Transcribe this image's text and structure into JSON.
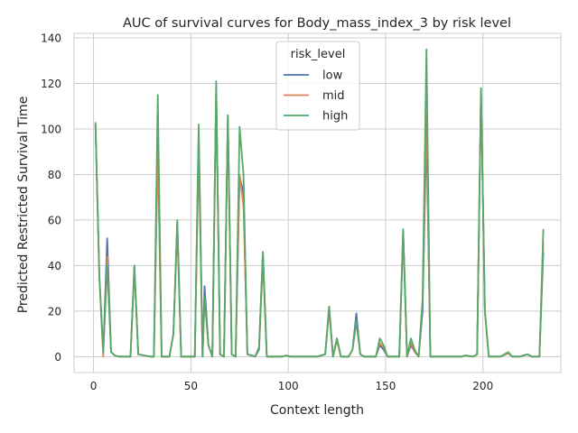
{
  "chart_data": {
    "type": "line",
    "title": "AUC of survival curves for Body_mass_index_3 by risk level",
    "xlabel": "Context length",
    "ylabel": "Predicted Restricted Survival Time",
    "xlim": [
      -10,
      240
    ],
    "ylim": [
      -7,
      142
    ],
    "x_ticks": [
      0,
      50,
      100,
      150,
      200
    ],
    "y_ticks": [
      0,
      20,
      40,
      60,
      80,
      100,
      120,
      140
    ],
    "grid": true,
    "legend": {
      "title": "risk_level",
      "position": "top-center"
    },
    "series": [
      {
        "name": "low",
        "color": "#4c72b0",
        "points": [
          [
            1,
            102
          ],
          [
            3,
            35
          ],
          [
            5,
            2
          ],
          [
            7,
            52
          ],
          [
            9,
            2
          ],
          [
            11,
            0.5
          ],
          [
            13,
            0
          ],
          [
            19,
            0
          ],
          [
            21,
            40
          ],
          [
            23,
            1
          ],
          [
            29,
            0
          ],
          [
            31,
            0
          ],
          [
            33,
            95
          ],
          [
            35,
            0
          ],
          [
            39,
            0
          ],
          [
            41,
            10
          ],
          [
            43,
            59
          ],
          [
            45,
            0
          ],
          [
            50,
            0
          ],
          [
            52,
            0
          ],
          [
            54,
            98
          ],
          [
            56,
            0
          ],
          [
            57,
            31
          ],
          [
            59,
            5
          ],
          [
            61,
            0
          ],
          [
            63,
            117
          ],
          [
            65,
            1
          ],
          [
            67,
            0
          ],
          [
            69,
            106
          ],
          [
            71,
            1
          ],
          [
            73,
            0
          ],
          [
            75,
            79
          ],
          [
            77,
            72
          ],
          [
            79,
            1
          ],
          [
            83,
            0
          ],
          [
            85,
            4
          ],
          [
            87,
            46
          ],
          [
            89,
            0
          ],
          [
            95,
            0
          ],
          [
            97,
            0
          ],
          [
            99,
            0.5
          ],
          [
            101,
            0
          ],
          [
            115,
            0
          ],
          [
            119,
            1
          ],
          [
            121,
            22
          ],
          [
            123,
            0
          ],
          [
            125,
            8
          ],
          [
            127,
            0
          ],
          [
            131,
            0
          ],
          [
            133,
            3
          ],
          [
            135,
            19
          ],
          [
            137,
            1
          ],
          [
            139,
            0
          ],
          [
            145,
            0
          ],
          [
            147,
            5
          ],
          [
            149,
            3
          ],
          [
            151,
            0
          ],
          [
            157,
            0
          ],
          [
            159,
            55
          ],
          [
            161,
            0
          ],
          [
            163,
            5
          ],
          [
            165,
            2
          ],
          [
            167,
            0
          ],
          [
            169,
            20
          ],
          [
            171,
            100
          ],
          [
            173,
            0
          ],
          [
            177,
            0
          ],
          [
            189,
            0
          ],
          [
            191,
            0.5
          ],
          [
            195,
            0
          ],
          [
            197,
            1
          ],
          [
            199,
            117
          ],
          [
            201,
            20
          ],
          [
            203,
            0
          ],
          [
            209,
            0
          ],
          [
            213,
            1.5
          ],
          [
            215,
            0
          ],
          [
            219,
            0
          ],
          [
            223,
            1
          ],
          [
            225,
            0
          ],
          [
            229,
            0
          ],
          [
            231,
            46
          ]
        ]
      },
      {
        "name": "mid",
        "color": "#dd8452",
        "points": [
          [
            1,
            102
          ],
          [
            3,
            35
          ],
          [
            5,
            0
          ],
          [
            7,
            44
          ],
          [
            9,
            2
          ],
          [
            11,
            0.5
          ],
          [
            13,
            0
          ],
          [
            19,
            0
          ],
          [
            21,
            38
          ],
          [
            23,
            1
          ],
          [
            29,
            0
          ],
          [
            31,
            0
          ],
          [
            33,
            90
          ],
          [
            35,
            0
          ],
          [
            39,
            0
          ],
          [
            41,
            10
          ],
          [
            43,
            56
          ],
          [
            45,
            0
          ],
          [
            50,
            0
          ],
          [
            52,
            0
          ],
          [
            54,
            90
          ],
          [
            56,
            0
          ],
          [
            57,
            26
          ],
          [
            59,
            5
          ],
          [
            61,
            0
          ],
          [
            63,
            115
          ],
          [
            65,
            1
          ],
          [
            67,
            0
          ],
          [
            69,
            104
          ],
          [
            71,
            1
          ],
          [
            73,
            0
          ],
          [
            75,
            80
          ],
          [
            77,
            66
          ],
          [
            79,
            1
          ],
          [
            83,
            0
          ],
          [
            85,
            3
          ],
          [
            87,
            42
          ],
          [
            89,
            0
          ],
          [
            95,
            0
          ],
          [
            97,
            0
          ],
          [
            99,
            0.5
          ],
          [
            101,
            0
          ],
          [
            115,
            0
          ],
          [
            119,
            1
          ],
          [
            121,
            20
          ],
          [
            123,
            0
          ],
          [
            125,
            7
          ],
          [
            127,
            0
          ],
          [
            131,
            0
          ],
          [
            133,
            3
          ],
          [
            135,
            15
          ],
          [
            137,
            1
          ],
          [
            139,
            0
          ],
          [
            145,
            0
          ],
          [
            147,
            6
          ],
          [
            149,
            4
          ],
          [
            151,
            0
          ],
          [
            157,
            0
          ],
          [
            159,
            55
          ],
          [
            161,
            0
          ],
          [
            163,
            6
          ],
          [
            165,
            2
          ],
          [
            167,
            0
          ],
          [
            169,
            25
          ],
          [
            171,
            107
          ],
          [
            173,
            0
          ],
          [
            177,
            0
          ],
          [
            189,
            0
          ],
          [
            191,
            0.5
          ],
          [
            195,
            0
          ],
          [
            197,
            1
          ],
          [
            199,
            116
          ],
          [
            201,
            20
          ],
          [
            203,
            0
          ],
          [
            209,
            0
          ],
          [
            213,
            1.5
          ],
          [
            215,
            0
          ],
          [
            219,
            0
          ],
          [
            223,
            1
          ],
          [
            225,
            0
          ],
          [
            229,
            0
          ],
          [
            231,
            50
          ]
        ]
      },
      {
        "name": "high",
        "color": "#55a868",
        "points": [
          [
            1,
            103
          ],
          [
            3,
            36
          ],
          [
            5,
            2
          ],
          [
            7,
            40
          ],
          [
            9,
            2
          ],
          [
            11,
            0.5
          ],
          [
            13,
            0
          ],
          [
            19,
            0
          ],
          [
            21,
            40
          ],
          [
            23,
            1
          ],
          [
            29,
            0
          ],
          [
            31,
            0
          ],
          [
            33,
            115
          ],
          [
            35,
            0
          ],
          [
            39,
            0
          ],
          [
            41,
            10
          ],
          [
            43,
            60
          ],
          [
            45,
            0
          ],
          [
            50,
            0
          ],
          [
            52,
            0
          ],
          [
            54,
            102
          ],
          [
            56,
            0
          ],
          [
            57,
            26
          ],
          [
            59,
            5
          ],
          [
            61,
            0
          ],
          [
            63,
            121
          ],
          [
            65,
            1
          ],
          [
            67,
            0
          ],
          [
            69,
            106
          ],
          [
            71,
            1
          ],
          [
            73,
            0
          ],
          [
            75,
            101
          ],
          [
            77,
            80
          ],
          [
            79,
            1
          ],
          [
            83,
            0
          ],
          [
            85,
            3
          ],
          [
            87,
            46
          ],
          [
            89,
            0
          ],
          [
            95,
            0
          ],
          [
            97,
            0
          ],
          [
            99,
            0.5
          ],
          [
            101,
            0
          ],
          [
            115,
            0
          ],
          [
            119,
            1
          ],
          [
            121,
            22
          ],
          [
            123,
            0
          ],
          [
            125,
            8
          ],
          [
            127,
            0
          ],
          [
            131,
            0
          ],
          [
            133,
            3
          ],
          [
            135,
            16
          ],
          [
            137,
            1
          ],
          [
            139,
            0
          ],
          [
            145,
            0
          ],
          [
            147,
            8
          ],
          [
            149,
            5
          ],
          [
            151,
            0
          ],
          [
            157,
            0
          ],
          [
            159,
            56
          ],
          [
            161,
            0
          ],
          [
            163,
            8
          ],
          [
            165,
            3
          ],
          [
            167,
            0
          ],
          [
            169,
            25
          ],
          [
            171,
            135
          ],
          [
            173,
            0
          ],
          [
            177,
            0
          ],
          [
            189,
            0
          ],
          [
            191,
            0.5
          ],
          [
            195,
            0
          ],
          [
            197,
            1
          ],
          [
            199,
            118
          ],
          [
            201,
            20
          ],
          [
            203,
            0
          ],
          [
            209,
            0
          ],
          [
            213,
            2
          ],
          [
            215,
            0
          ],
          [
            219,
            0
          ],
          [
            223,
            1
          ],
          [
            225,
            0
          ],
          [
            229,
            0
          ],
          [
            231,
            56
          ]
        ]
      }
    ]
  }
}
